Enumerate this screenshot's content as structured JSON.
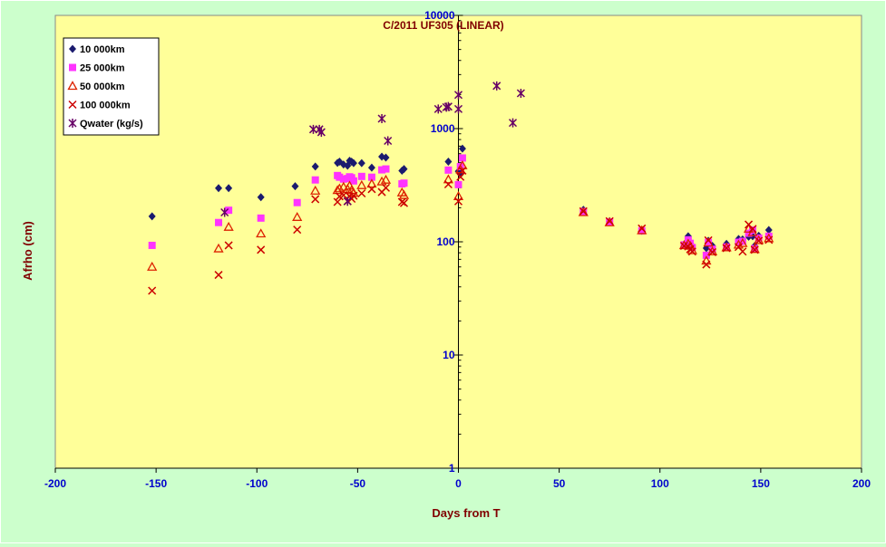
{
  "chart_data": {
    "type": "scatter",
    "title": "C/2011 UF305 (LINEAR)",
    "xlabel": "Days from  T",
    "ylabel": "Afrho (cm)",
    "xlim": [
      -200,
      200
    ],
    "ylim": [
      1,
      10000
    ],
    "yscale": "log",
    "x_ticks": [
      "-200",
      "-150",
      "-100",
      "-50",
      "0",
      "50",
      "100",
      "150",
      "200"
    ],
    "y_ticks": [
      "1",
      "10",
      "100",
      "1000",
      "10000"
    ],
    "grid": false,
    "legend_position": "top-left",
    "colors": {
      "plot_background": "#ffff99",
      "page_background": "#ccffcc",
      "axis_text": "#0000cc",
      "title_text": "#800000"
    },
    "series": [
      {
        "name": "10 000km",
        "marker": "diamond",
        "color": "#1a1a6e",
        "points": [
          [
            -152,
            168
          ],
          [
            -119,
            298
          ],
          [
            -114,
            298
          ],
          [
            -98,
            248
          ],
          [
            -81,
            310
          ],
          [
            -71,
            462
          ],
          [
            -60,
            498
          ],
          [
            -59,
            510
          ],
          [
            -57,
            482
          ],
          [
            -55,
            470
          ],
          [
            -54,
            520
          ],
          [
            -53,
            510
          ],
          [
            -52,
            495
          ],
          [
            -48,
            495
          ],
          [
            -43,
            452
          ],
          [
            -38,
            565
          ],
          [
            -36,
            555
          ],
          [
            -28,
            425
          ],
          [
            -27,
            440
          ],
          [
            -5,
            510
          ],
          [
            0,
            420
          ],
          [
            1,
            395
          ],
          [
            2,
            665
          ],
          [
            62,
            192
          ],
          [
            75,
            152
          ],
          [
            91,
            125
          ],
          [
            112,
            95
          ],
          [
            114,
            112
          ],
          [
            115,
            98
          ],
          [
            116,
            92
          ],
          [
            123,
            88
          ],
          [
            124,
            102
          ],
          [
            126,
            92
          ],
          [
            133,
            96
          ],
          [
            139,
            106
          ],
          [
            141,
            105
          ],
          [
            144,
            111
          ],
          [
            146,
            112
          ],
          [
            147,
            92
          ],
          [
            149,
            113
          ],
          [
            154,
            127
          ]
        ]
      },
      {
        "name": "25 000km",
        "marker": "square",
        "color": "#ff33ff",
        "points": [
          [
            -152,
            93
          ],
          [
            -119,
            148
          ],
          [
            -114,
            190
          ],
          [
            -98,
            162
          ],
          [
            -80,
            222
          ],
          [
            -71,
            352
          ],
          [
            -60,
            385
          ],
          [
            -59,
            372
          ],
          [
            -57,
            358
          ],
          [
            -55,
            362
          ],
          [
            -54,
            375
          ],
          [
            -53,
            368
          ],
          [
            -52,
            345
          ],
          [
            -48,
            378
          ],
          [
            -43,
            372
          ],
          [
            -38,
            432
          ],
          [
            -36,
            440
          ],
          [
            -28,
            325
          ],
          [
            -27,
            330
          ],
          [
            -5,
            430
          ],
          [
            0,
            320
          ],
          [
            1,
            462
          ],
          [
            2,
            550
          ],
          [
            62,
            185
          ],
          [
            75,
            150
          ],
          [
            91,
            125
          ],
          [
            112,
            94
          ],
          [
            114,
            104
          ],
          [
            115,
            97
          ],
          [
            116,
            89
          ],
          [
            123,
            76
          ],
          [
            124,
            99
          ],
          [
            126,
            86
          ],
          [
            133,
            90
          ],
          [
            139,
            99
          ],
          [
            141,
            101
          ],
          [
            144,
            119
          ],
          [
            146,
            127
          ],
          [
            147,
            87
          ],
          [
            149,
            108
          ],
          [
            154,
            112
          ]
        ]
      },
      {
        "name": "50 000km",
        "marker": "triangle",
        "color": "#dd2200",
        "points": [
          [
            -152,
            60
          ],
          [
            -119,
            87
          ],
          [
            -114,
            135
          ],
          [
            -98,
            118
          ],
          [
            -80,
            165
          ],
          [
            -71,
            282
          ],
          [
            -60,
            285
          ],
          [
            -59,
            295
          ],
          [
            -57,
            305
          ],
          [
            -55,
            292
          ],
          [
            -54,
            312
          ],
          [
            -53,
            285
          ],
          [
            -52,
            270
          ],
          [
            -48,
            315
          ],
          [
            -43,
            325
          ],
          [
            -38,
            340
          ],
          [
            -36,
            352
          ],
          [
            -28,
            272
          ],
          [
            -27,
            258
          ],
          [
            -5,
            355
          ],
          [
            0,
            252
          ],
          [
            1,
            435
          ],
          [
            2,
            472
          ],
          [
            62,
            182
          ],
          [
            75,
            148
          ],
          [
            91,
            126
          ],
          [
            112,
            93
          ],
          [
            114,
            96
          ],
          [
            115,
            92
          ],
          [
            116,
            84
          ],
          [
            123,
            68
          ],
          [
            124,
            98
          ],
          [
            126,
            82
          ],
          [
            133,
            89
          ],
          [
            139,
            94
          ],
          [
            141,
            97
          ],
          [
            144,
            130
          ],
          [
            146,
            121
          ],
          [
            147,
            86
          ],
          [
            149,
            103
          ],
          [
            154,
            107
          ]
        ]
      },
      {
        "name": "100 000km",
        "marker": "x",
        "color": "#cc0000",
        "points": [
          [
            -152,
            37
          ],
          [
            -119,
            51
          ],
          [
            -114,
            93
          ],
          [
            -98,
            85
          ],
          [
            -80,
            128
          ],
          [
            -71,
            238
          ],
          [
            -60,
            225
          ],
          [
            -59,
            252
          ],
          [
            -57,
            258
          ],
          [
            -55,
            228
          ],
          [
            -54,
            252
          ],
          [
            -53,
            240
          ],
          [
            -52,
            255
          ],
          [
            -48,
            268
          ],
          [
            -43,
            292
          ],
          [
            -38,
            275
          ],
          [
            -36,
            300
          ],
          [
            -28,
            225
          ],
          [
            -27,
            220
          ],
          [
            -5,
            322
          ],
          [
            0,
            228
          ],
          [
            1,
            375
          ],
          [
            2,
            425
          ],
          [
            62,
            186
          ],
          [
            75,
            152
          ],
          [
            91,
            131
          ],
          [
            112,
            92
          ],
          [
            114,
            91
          ],
          [
            115,
            86
          ],
          [
            116,
            82
          ],
          [
            123,
            63
          ],
          [
            124,
            103
          ],
          [
            126,
            81
          ],
          [
            133,
            88
          ],
          [
            139,
            90
          ],
          [
            141,
            82
          ],
          [
            144,
            142
          ],
          [
            146,
            130
          ],
          [
            147,
            85
          ],
          [
            149,
            102
          ],
          [
            154,
            104
          ]
        ]
      },
      {
        "name": "Qwater (kg/s)",
        "marker": "star",
        "color": "#660066",
        "points": [
          [
            -116,
            182
          ],
          [
            -72,
            985
          ],
          [
            -69,
            985
          ],
          [
            -68,
            930
          ],
          [
            -55,
            228
          ],
          [
            -38,
            1225
          ],
          [
            -35,
            780
          ],
          [
            -10,
            1490
          ],
          [
            -6,
            1545
          ],
          [
            -5,
            1565
          ],
          [
            0,
            1490
          ],
          [
            0,
            1985
          ],
          [
            19,
            2385
          ],
          [
            27,
            1125
          ],
          [
            31,
            2050
          ]
        ]
      }
    ]
  }
}
